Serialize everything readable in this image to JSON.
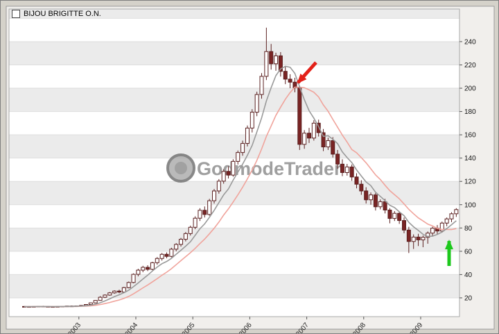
{
  "legend": {
    "symbol_label": "BIJOU BRIGITTE O.N."
  },
  "watermark": {
    "text": "GodmodeTrader"
  },
  "chart_data": {
    "type": "candlestick",
    "title": "BIJOU BRIGITTE O.N.",
    "interval": "monthly",
    "start": "2002-01",
    "ylim": [
      0,
      268
    ],
    "y_ticks": [
      20,
      40,
      60,
      80,
      100,
      120,
      140,
      160,
      180,
      200,
      220,
      240
    ],
    "x_ticks": [
      {
        "label": "2003",
        "index": 12
      },
      {
        "label": "2004",
        "index": 24
      },
      {
        "label": "2005",
        "index": 36
      },
      {
        "label": "2006",
        "index": 48
      },
      {
        "label": "2007",
        "index": 60
      },
      {
        "label": "2008",
        "index": 72
      },
      {
        "label": "2009",
        "index": 84
      }
    ],
    "moving_averages": [
      {
        "name": "fast",
        "window": 6,
        "color": "#999999"
      },
      {
        "name": "slow",
        "window": 12,
        "color": "#f0a39b"
      }
    ],
    "grid": {
      "stripe_color": "#ebebeb",
      "line_color": "#dedede"
    },
    "candle_colors": {
      "up_fill": "#ffffff",
      "down_fill": "#7a2424",
      "border": "#5a1f1f"
    },
    "annotations": [
      {
        "name": "red-arrow",
        "type": "arrow",
        "color": "#e32119",
        "from": [
          455,
          89
        ],
        "to": [
          429,
          118
        ],
        "points_at": "late-2006 breakdown below moving averages"
      },
      {
        "name": "green-arrow",
        "type": "arrow",
        "color": "#1dc81d",
        "from": [
          647,
          382
        ],
        "to": [
          647,
          346
        ],
        "points_at": "2009 upturn above moving averages"
      }
    ],
    "ohlc": [
      [
        12.6,
        13.0,
        12.2,
        12.5
      ],
      [
        12.5,
        12.9,
        12.1,
        12.4
      ],
      [
        12.4,
        12.8,
        12.0,
        12.6
      ],
      [
        12.6,
        13.1,
        12.3,
        12.8
      ],
      [
        12.8,
        13.2,
        12.4,
        12.6
      ],
      [
        12.6,
        13.0,
        12.2,
        12.5
      ],
      [
        12.5,
        12.9,
        12.0,
        12.3
      ],
      [
        12.3,
        12.8,
        12.0,
        12.6
      ],
      [
        12.6,
        13.0,
        12.2,
        12.8
      ],
      [
        12.8,
        13.2,
        12.4,
        13.0
      ],
      [
        13.0,
        13.4,
        12.6,
        12.8
      ],
      [
        12.8,
        13.3,
        12.5,
        13.1
      ],
      [
        13.1,
        13.8,
        12.8,
        13.5
      ],
      [
        13.5,
        14.6,
        13.2,
        14.3
      ],
      [
        14.3,
        16.0,
        14.0,
        15.7
      ],
      [
        15.7,
        18.2,
        15.4,
        17.8
      ],
      [
        17.8,
        21.5,
        17.5,
        20.5
      ],
      [
        20.5,
        23.0,
        19.8,
        22.4
      ],
      [
        22.4,
        25.0,
        21.8,
        24.3
      ],
      [
        24.3,
        26.5,
        23.5,
        25.8
      ],
      [
        25.8,
        27.0,
        24.0,
        25.0
      ],
      [
        25.0,
        29.5,
        24.6,
        28.8
      ],
      [
        28.8,
        34.0,
        28.2,
        33.2
      ],
      [
        33.2,
        41.0,
        32.5,
        40.2
      ],
      [
        40.2,
        45.0,
        38.5,
        43.8
      ],
      [
        43.8,
        47.5,
        42.0,
        46.2
      ],
      [
        46.2,
        48.0,
        43.0,
        44.5
      ],
      [
        44.5,
        51.0,
        43.8,
        50.2
      ],
      [
        50.2,
        55.0,
        48.5,
        53.8
      ],
      [
        53.8,
        58.5,
        52.0,
        57.4
      ],
      [
        57.4,
        59.0,
        54.0,
        55.6
      ],
      [
        55.6,
        63.0,
        54.8,
        61.8
      ],
      [
        61.8,
        67.0,
        60.0,
        65.9
      ],
      [
        65.9,
        71.5,
        64.0,
        70.3
      ],
      [
        70.3,
        76.5,
        68.5,
        75.2
      ],
      [
        75.2,
        82.0,
        73.5,
        80.6
      ],
      [
        80.6,
        90.0,
        79.0,
        88.4
      ],
      [
        88.4,
        97.0,
        86.0,
        95.2
      ],
      [
        95.2,
        98.5,
        89.0,
        91.6
      ],
      [
        91.6,
        105.0,
        90.5,
        103.4
      ],
      [
        103.4,
        113.5,
        101.0,
        111.8
      ],
      [
        111.8,
        122.0,
        109.5,
        120.2
      ],
      [
        120.2,
        130.5,
        118.0,
        128.6
      ],
      [
        128.6,
        133.0,
        122.5,
        125.4
      ],
      [
        125.4,
        139.0,
        124.0,
        137.2
      ],
      [
        137.2,
        146.5,
        134.5,
        144.8
      ],
      [
        144.8,
        155.0,
        142.0,
        152.6
      ],
      [
        152.6,
        168.0,
        150.0,
        165.8
      ],
      [
        165.8,
        182.0,
        162.0,
        179.4
      ],
      [
        179.4,
        197.0,
        176.0,
        194.6
      ],
      [
        194.6,
        213.0,
        191.0,
        210.2
      ],
      [
        210.2,
        252.0,
        207.0,
        231.5
      ],
      [
        231.5,
        238.0,
        216.0,
        221.0
      ],
      [
        221.0,
        230.5,
        215.0,
        227.8
      ],
      [
        227.8,
        231.0,
        210.0,
        214.5
      ],
      [
        214.5,
        219.0,
        203.5,
        207.8
      ],
      [
        207.8,
        212.0,
        200.0,
        205.2
      ],
      [
        205.2,
        209.0,
        196.5,
        200.4
      ],
      [
        200.4,
        202.0,
        147.0,
        151.8
      ],
      [
        151.8,
        164.0,
        148.0,
        161.4
      ],
      [
        161.4,
        166.0,
        153.0,
        157.2
      ],
      [
        157.2,
        172.5,
        155.0,
        170.0
      ],
      [
        170.0,
        173.0,
        158.5,
        161.8
      ],
      [
        161.8,
        165.0,
        146.0,
        149.6
      ],
      [
        149.6,
        157.5,
        147.0,
        155.0
      ],
      [
        155.0,
        158.0,
        140.5,
        143.4
      ],
      [
        143.4,
        147.0,
        131.0,
        134.8
      ],
      [
        134.8,
        139.0,
        124.5,
        127.6
      ],
      [
        127.6,
        135.0,
        125.0,
        132.4
      ],
      [
        132.4,
        134.5,
        120.5,
        123.8
      ],
      [
        123.8,
        127.0,
        114.0,
        117.6
      ],
      [
        117.6,
        121.0,
        108.5,
        111.8
      ],
      [
        111.8,
        115.0,
        101.0,
        104.2
      ],
      [
        104.2,
        110.5,
        100.0,
        108.4
      ],
      [
        108.4,
        110.0,
        95.0,
        98.2
      ],
      [
        98.2,
        104.5,
        96.0,
        102.6
      ],
      [
        102.6,
        105.0,
        92.5,
        95.4
      ],
      [
        95.4,
        97.0,
        84.0,
        88.2
      ],
      [
        88.2,
        94.5,
        86.0,
        92.6
      ],
      [
        92.6,
        94.0,
        83.5,
        86.4
      ],
      [
        86.4,
        89.0,
        75.5,
        78.2
      ],
      [
        78.2,
        81.0,
        58.5,
        68.4
      ],
      [
        68.4,
        74.5,
        62.0,
        72.2
      ],
      [
        72.2,
        75.0,
        64.5,
        69.8
      ],
      [
        69.8,
        73.5,
        63.5,
        72.0
      ],
      [
        72.0,
        77.0,
        66.5,
        75.6
      ],
      [
        75.6,
        81.0,
        73.0,
        79.8
      ],
      [
        79.8,
        82.5,
        74.5,
        77.4
      ],
      [
        77.4,
        85.5,
        76.0,
        84.2
      ],
      [
        84.2,
        89.0,
        81.5,
        87.8
      ],
      [
        87.8,
        93.5,
        85.0,
        92.2
      ],
      [
        92.2,
        97.0,
        89.5,
        95.8
      ]
    ]
  }
}
